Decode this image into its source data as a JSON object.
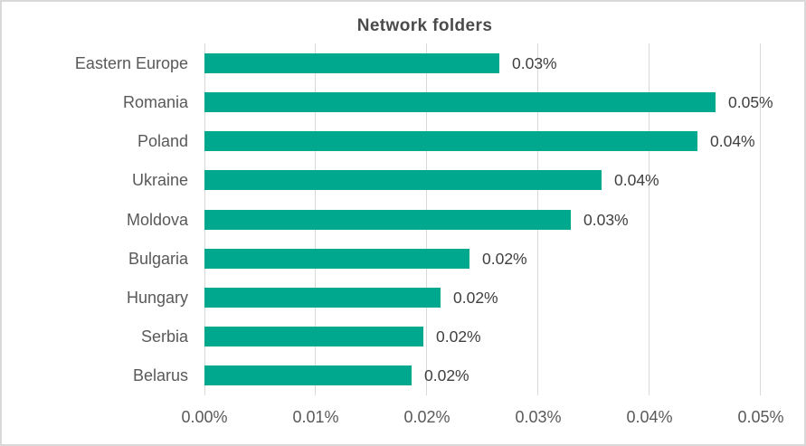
{
  "chart_data": {
    "type": "bar",
    "orientation": "horizontal",
    "title": "Network folders",
    "categories": [
      "Eastern Europe",
      "Romania",
      "Poland",
      "Ukraine",
      "Moldova",
      "Bulgaria",
      "Hungary",
      "Serbia",
      "Belarus"
    ],
    "values": [
      0.0265,
      0.0459,
      0.0443,
      0.0357,
      0.0329,
      0.0238,
      0.0212,
      0.0197,
      0.0186
    ],
    "value_labels": [
      "0.03%",
      "0.05%",
      "0.04%",
      "0.04%",
      "0.03%",
      "0.02%",
      "0.02%",
      "0.02%",
      "0.02%"
    ],
    "x_ticks": [
      "0.00%",
      "0.01%",
      "0.02%",
      "0.03%",
      "0.04%",
      "0.05%"
    ],
    "x_tick_values": [
      0,
      0.01,
      0.02,
      0.03,
      0.04,
      0.05
    ],
    "xlim": [
      0,
      0.05
    ],
    "xlabel": "",
    "ylabel": "",
    "unit": "percent",
    "grid": "vertical",
    "legend_position": "none",
    "colors": {
      "bar": "#00a88e",
      "title_text": "#4a4a4a",
      "axis_text": "#595959",
      "data_label_text": "#404040",
      "gridline": "#d9d9d9",
      "border": "#d9d9d9",
      "background": "#ffffff"
    }
  }
}
